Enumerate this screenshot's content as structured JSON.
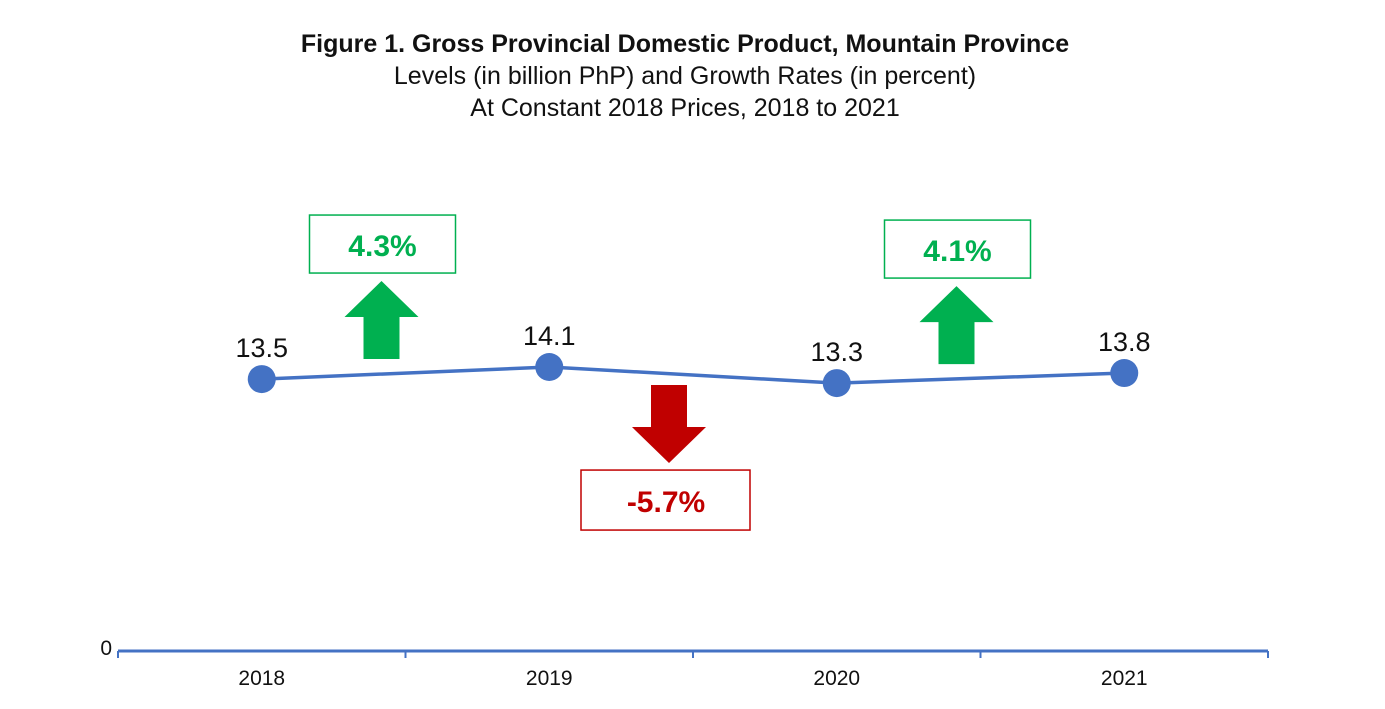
{
  "chart_data": {
    "type": "line",
    "title": "Figure 1. Gross Provincial Domestic Product, Mountain Province",
    "subtitle": "Levels (in billion PhP) and Growth Rates (in percent)",
    "subtitle2": "At Constant 2018 Prices, 2018 to 2021",
    "categories": [
      "2018",
      "2019",
      "2020",
      "2021"
    ],
    "values": [
      13.5,
      14.1,
      13.3,
      13.8
    ],
    "value_labels": [
      "13.5",
      "14.1",
      "13.3",
      "13.8"
    ],
    "y_axis_label": "0",
    "ylim": [
      0,
      14.1
    ],
    "grid": false,
    "growth_rates": [
      {
        "label": "4.3%",
        "value": 4.3,
        "direction": "up"
      },
      {
        "label": "-5.7%",
        "value": -5.7,
        "direction": "down"
      },
      {
        "label": "4.1%",
        "value": 4.1,
        "direction": "up"
      }
    ],
    "colors": {
      "line": "#4472c4",
      "axis": "#4472c4",
      "up": "#00b050",
      "down": "#c00000"
    }
  }
}
